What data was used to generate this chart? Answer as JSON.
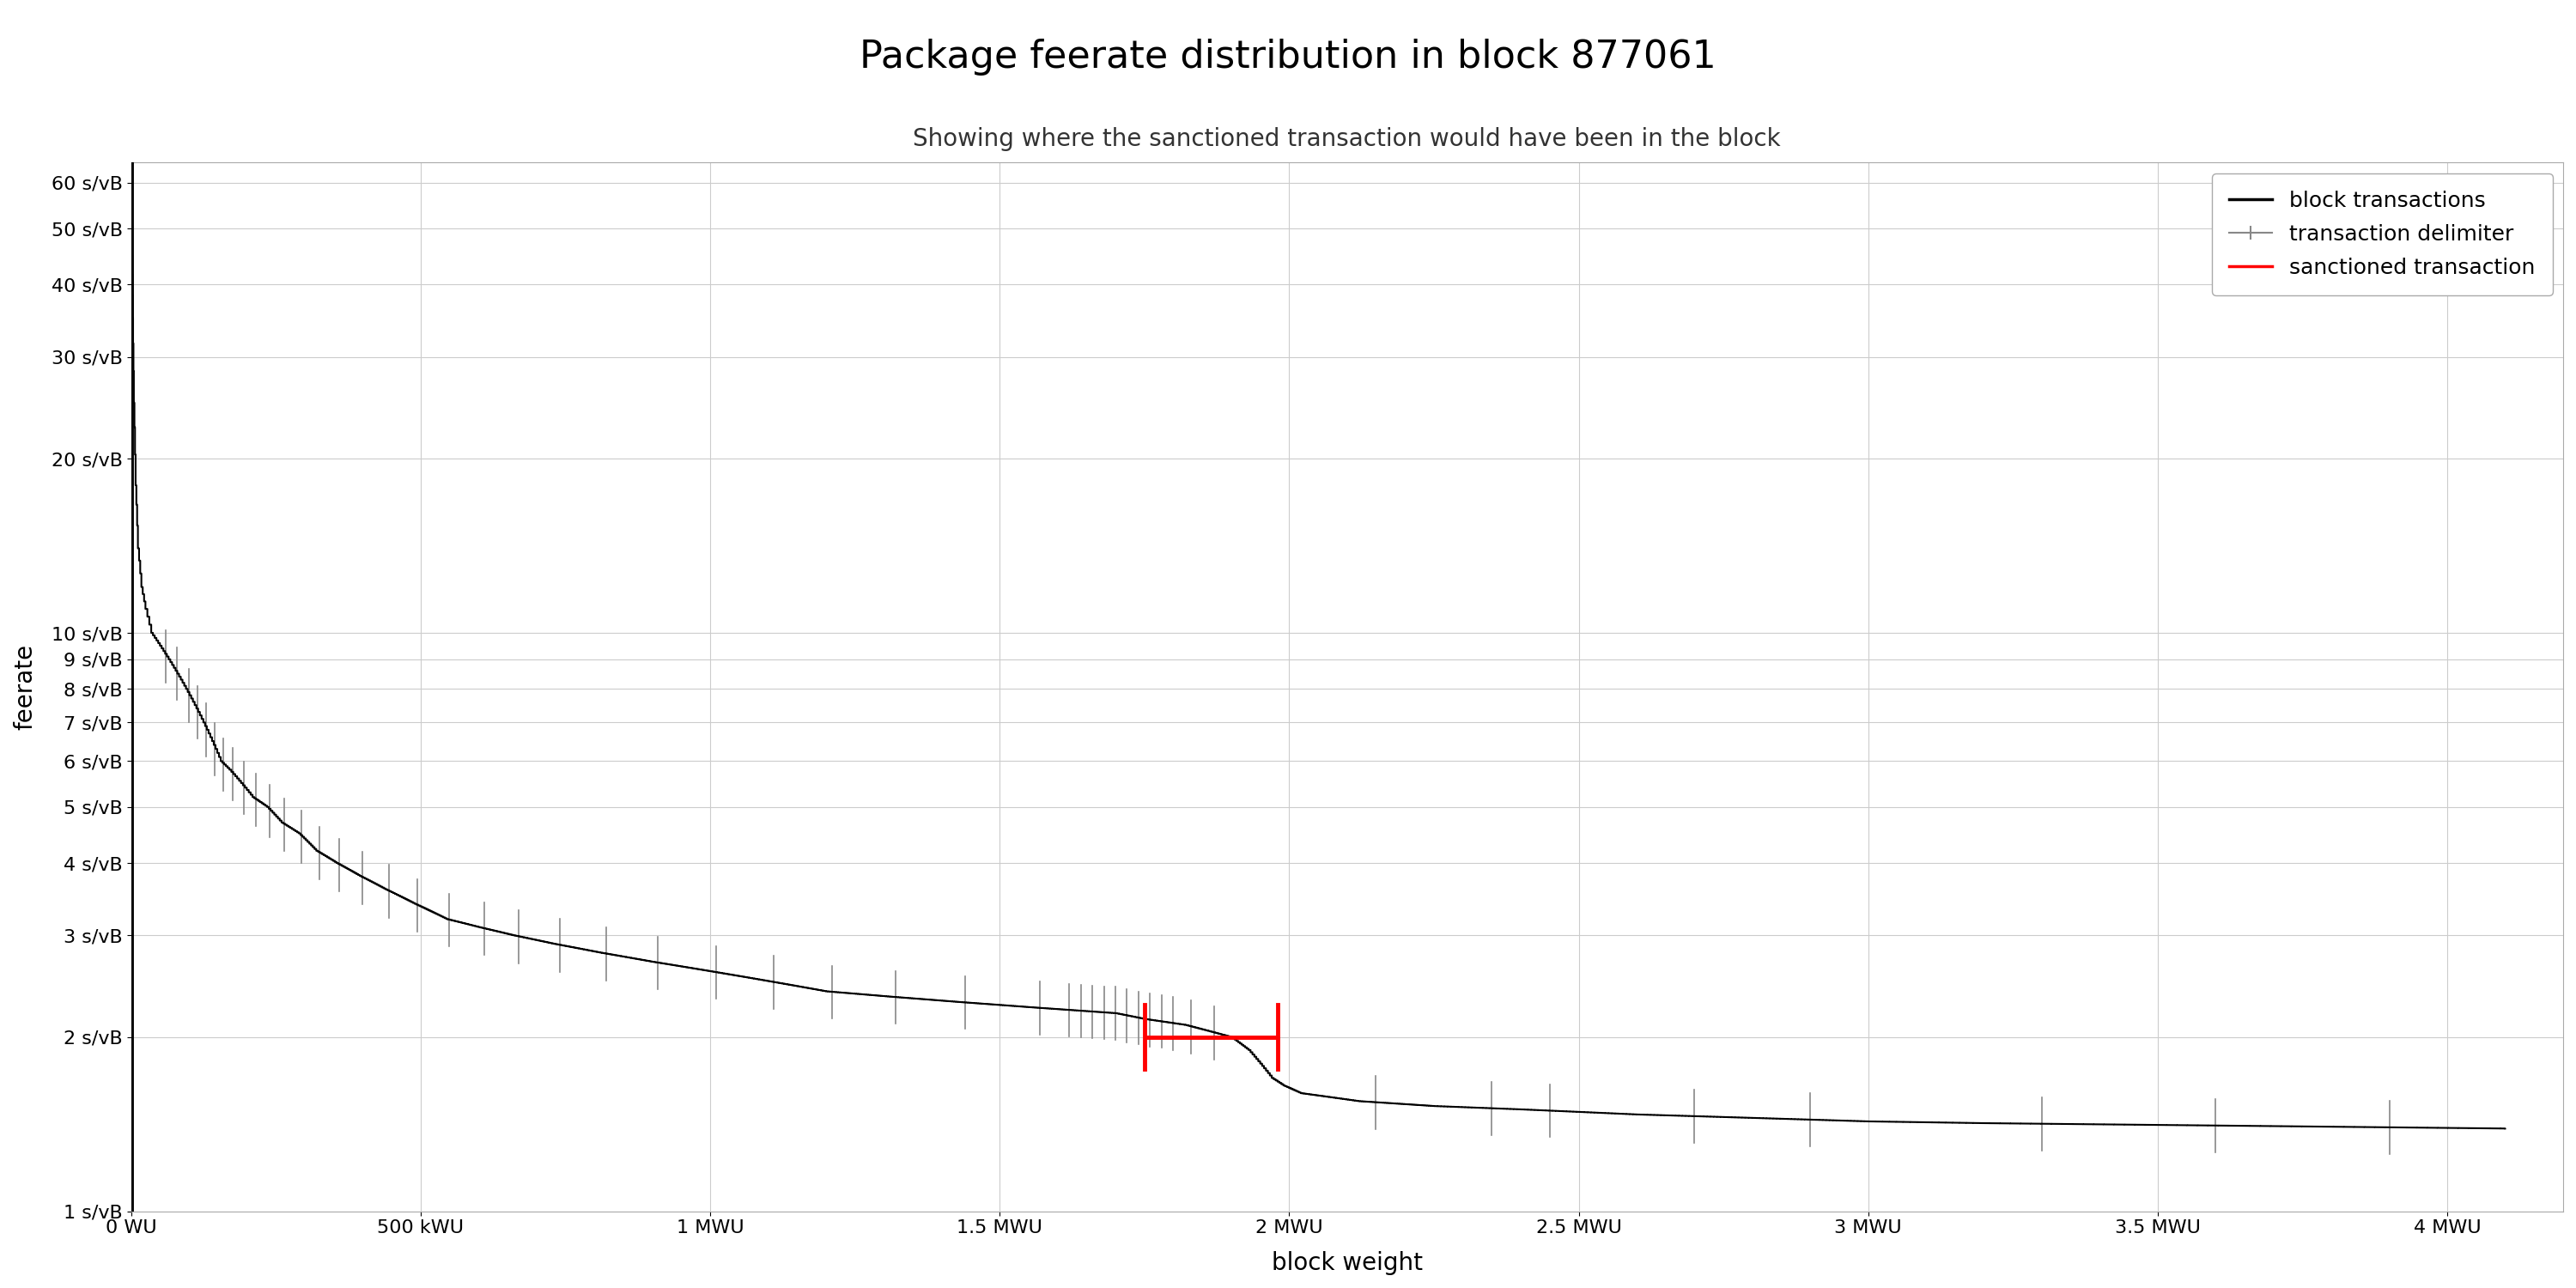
{
  "title": "Package feerate distribution in block 877061",
  "subtitle": "Showing where the sanctioned transaction would have been in the block",
  "xlabel": "block weight",
  "ylabel": "feerate",
  "background_color": "#ffffff",
  "grid_color": "#cccccc",
  "title_fontsize": 32,
  "subtitle_fontsize": 20,
  "axis_label_fontsize": 20,
  "tick_fontsize": 16,
  "legend_fontsize": 18,
  "yticks": [
    1,
    2,
    3,
    4,
    5,
    6,
    7,
    8,
    9,
    10,
    20,
    30,
    40,
    50,
    60
  ],
  "ytick_labels": [
    "1 s/vB",
    "2 s/vB",
    "3 s/vB",
    "4 s/vB",
    "5 s/vB",
    "6 s/vB",
    "7 s/vB",
    "8 s/vB",
    "9 s/vB",
    "10 s/vB",
    "20 s/vB",
    "30 s/vB",
    "40 s/vB",
    "50 s/vB",
    "60 s/vB"
  ],
  "xticks": [
    0,
    500000,
    1000000,
    1500000,
    2000000,
    2500000,
    3000000,
    3500000,
    4000000
  ],
  "xtick_labels": [
    "0 WU",
    "500 kWU",
    "1 MWU",
    "1.5 MWU",
    "2 MWU",
    "2.5 MWU",
    "3 MWU",
    "3.5 MWU",
    "4 MWU"
  ],
  "xmin": 0,
  "xmax": 4200000,
  "ymin": 1.0,
  "ymax": 65,
  "sanctioned_x_start": 1750000,
  "sanctioned_x_end": 1980000,
  "sanctioned_y": 2.0,
  "sanctioned_color": "#ff0000",
  "block_tx_color": "#000000",
  "delimiter_color": "#888888",
  "coinbase_linewidth": 3.5,
  "block_linewidth": 1.5,
  "sanctioned_linewidth": 3.5,
  "waypoints": [
    [
      0,
      50
    ],
    [
      1000,
      50
    ],
    [
      2000,
      45
    ],
    [
      3000,
      35
    ],
    [
      5000,
      25
    ],
    [
      8000,
      18
    ],
    [
      12000,
      14
    ],
    [
      18000,
      12
    ],
    [
      25000,
      11
    ],
    [
      35000,
      10
    ],
    [
      50000,
      9.5
    ],
    [
      65000,
      9.0
    ],
    [
      80000,
      8.5
    ],
    [
      95000,
      8.0
    ],
    [
      110000,
      7.5
    ],
    [
      125000,
      7.0
    ],
    [
      140000,
      6.5
    ],
    [
      155000,
      6.0
    ],
    [
      170000,
      5.8
    ],
    [
      190000,
      5.5
    ],
    [
      210000,
      5.2
    ],
    [
      235000,
      5.0
    ],
    [
      260000,
      4.7
    ],
    [
      290000,
      4.5
    ],
    [
      320000,
      4.2
    ],
    [
      355000,
      4.0
    ],
    [
      395000,
      3.8
    ],
    [
      440000,
      3.6
    ],
    [
      490000,
      3.4
    ],
    [
      545000,
      3.2
    ],
    [
      600000,
      3.1
    ],
    [
      660000,
      3.0
    ],
    [
      730000,
      2.9
    ],
    [
      810000,
      2.8
    ],
    [
      900000,
      2.7
    ],
    [
      1000000,
      2.6
    ],
    [
      1100000,
      2.5
    ],
    [
      1200000,
      2.4
    ],
    [
      1310000,
      2.35
    ],
    [
      1430000,
      2.3
    ],
    [
      1560000,
      2.25
    ],
    [
      1700000,
      2.2
    ],
    [
      1750000,
      2.15
    ],
    [
      1820000,
      2.1
    ],
    [
      1860000,
      2.05
    ],
    [
      1900000,
      2.0
    ],
    [
      1930000,
      1.9
    ],
    [
      1950000,
      1.8
    ],
    [
      1970000,
      1.7
    ],
    [
      1990000,
      1.65
    ],
    [
      2020000,
      1.6
    ],
    [
      2060000,
      1.58
    ],
    [
      2120000,
      1.55
    ],
    [
      2250000,
      1.52
    ],
    [
      2400000,
      1.5
    ],
    [
      2600000,
      1.47
    ],
    [
      2800000,
      1.45
    ],
    [
      3000000,
      1.43
    ],
    [
      3200000,
      1.42
    ],
    [
      3500000,
      1.41
    ],
    [
      3800000,
      1.4
    ],
    [
      4100000,
      1.39
    ]
  ],
  "delimiter_x_positions": [
    60000,
    80000,
    100000,
    115000,
    130000,
    145000,
    160000,
    175000,
    195000,
    215000,
    240000,
    265000,
    295000,
    325000,
    360000,
    400000,
    445000,
    495000,
    550000,
    610000,
    670000,
    740000,
    820000,
    910000,
    1010000,
    1110000,
    1210000,
    1320000,
    1440000,
    1570000,
    1620000,
    1640000,
    1660000,
    1680000,
    1700000,
    1720000,
    1740000,
    1760000,
    1780000,
    1800000,
    1830000,
    1870000,
    2150000,
    2350000,
    2450000,
    2700000,
    2900000,
    3300000,
    3600000,
    3900000
  ]
}
